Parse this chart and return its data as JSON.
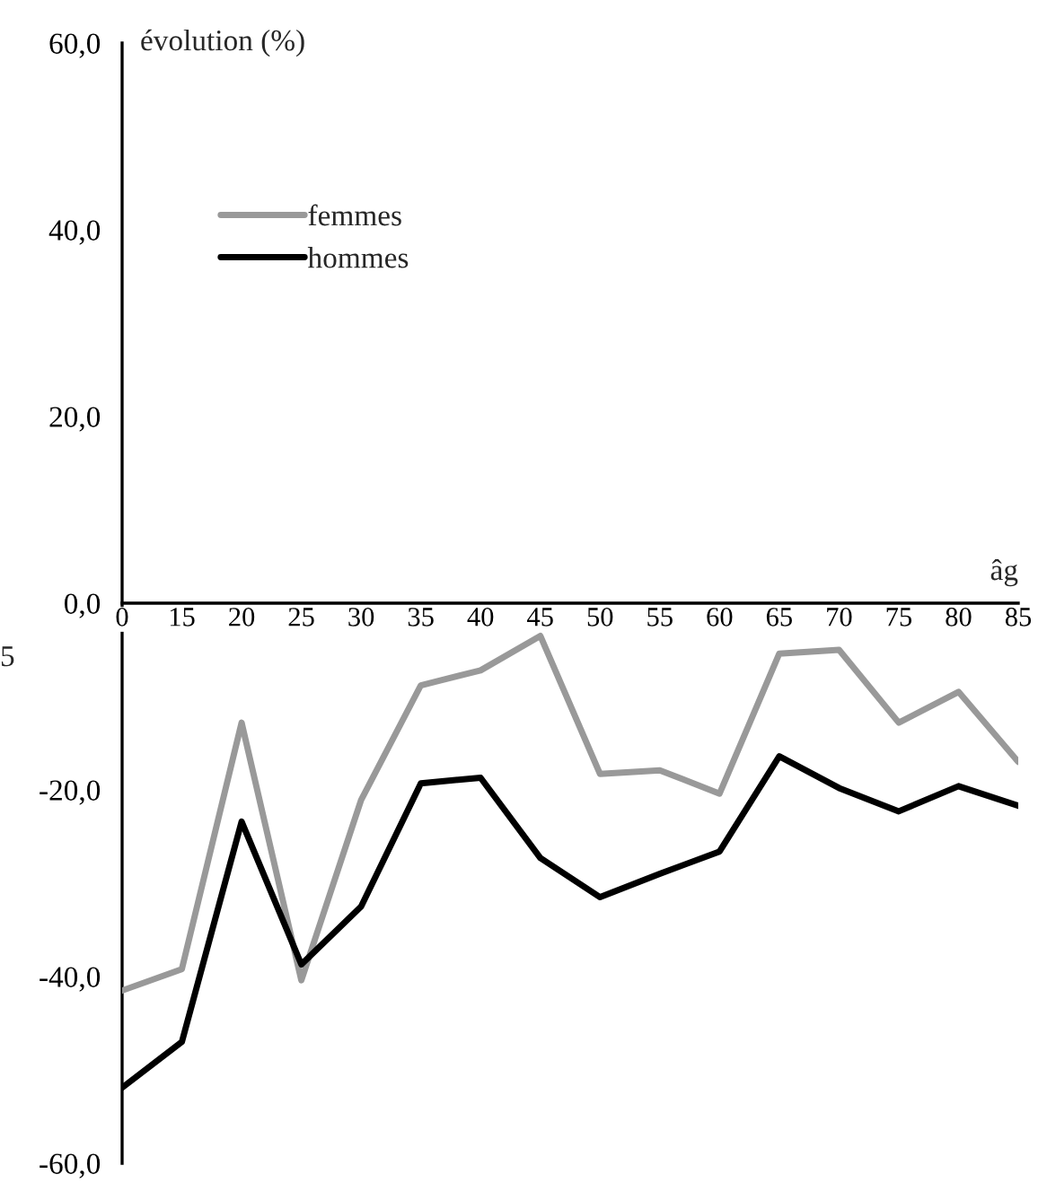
{
  "chart_data": {
    "type": "line",
    "ylabel": "évolution (%)",
    "xlabel": "âg",
    "categories": [
      "0",
      "15",
      "20",
      "25",
      "30",
      "35",
      "40",
      "45",
      "50",
      "55",
      "60",
      "65",
      "70",
      "75",
      "80",
      "85"
    ],
    "series": [
      {
        "name": "femmes",
        "color": "#999999",
        "values": [
          -41.5,
          -39.2,
          -12.8,
          -40.4,
          -21.1,
          -8.8,
          -7.2,
          -3.5,
          -18.3,
          -17.9,
          -20.4,
          -5.4,
          -5.0,
          -12.8,
          -9.5,
          -17.0
        ]
      },
      {
        "name": "hommes",
        "color": "#000000",
        "values": [
          -51.9,
          -47.0,
          -23.4,
          -38.7,
          -32.5,
          -19.3,
          -18.7,
          -27.3,
          -31.5,
          -29.0,
          -26.6,
          -16.4,
          -19.8,
          -22.3,
          -19.6,
          -21.7
        ]
      }
    ],
    "ylim": [
      -60,
      60
    ],
    "yticks": [
      {
        "value": -60,
        "label": "-60,0"
      },
      {
        "value": -40,
        "label": "-40,0"
      },
      {
        "value": -20,
        "label": "-20,0"
      },
      {
        "value": 0,
        "label": "0,0"
      },
      {
        "value": 20,
        "label": "20,0"
      },
      {
        "value": 40,
        "label": "40,0"
      },
      {
        "value": 60,
        "label": "60,0"
      }
    ],
    "annotations": [
      "5"
    ],
    "legend": "top left",
    "grid": false,
    "marker": "none",
    "line_style": "solid"
  }
}
